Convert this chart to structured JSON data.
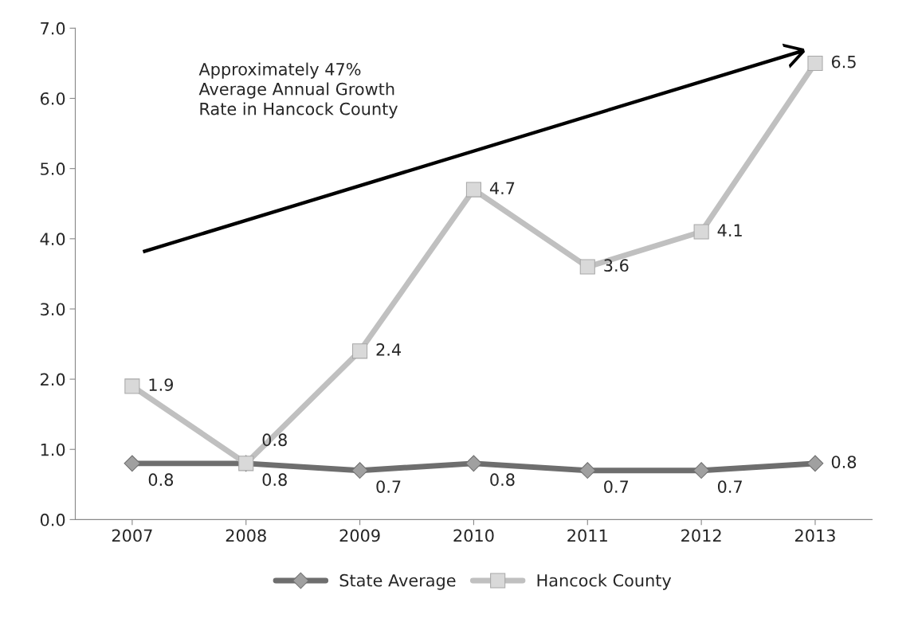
{
  "chart_data": {
    "type": "line",
    "categories": [
      "2007",
      "2008",
      "2009",
      "2010",
      "2011",
      "2012",
      "2013"
    ],
    "series": [
      {
        "name": "State Average",
        "color": "#6e6e6e",
        "marker": "diamond",
        "values": [
          0.8,
          0.8,
          0.7,
          0.8,
          0.7,
          0.7,
          0.8
        ]
      },
      {
        "name": "Hancock County",
        "color": "#c0c0c0",
        "marker": "square",
        "values": [
          1.9,
          0.8,
          2.4,
          4.7,
          3.6,
          4.1,
          6.5
        ]
      }
    ],
    "ylim": [
      0,
      7
    ],
    "yticks": [
      {
        "value": 0,
        "label": "0.0"
      },
      {
        "value": 1,
        "label": "1.0"
      },
      {
        "value": 2,
        "label": "2.0"
      },
      {
        "value": 3,
        "label": "3.0"
      },
      {
        "value": 4,
        "label": "4.0"
      },
      {
        "value": 5,
        "label": "5.0"
      },
      {
        "value": 6,
        "label": "6.0"
      },
      {
        "value": 7,
        "label": "7.0"
      }
    ],
    "annotations": [
      "Approximately 47%\nAverage Annual Growth\nRate in Hancock County"
    ],
    "data_labels": true,
    "grid": false,
    "legend": "bottom"
  }
}
